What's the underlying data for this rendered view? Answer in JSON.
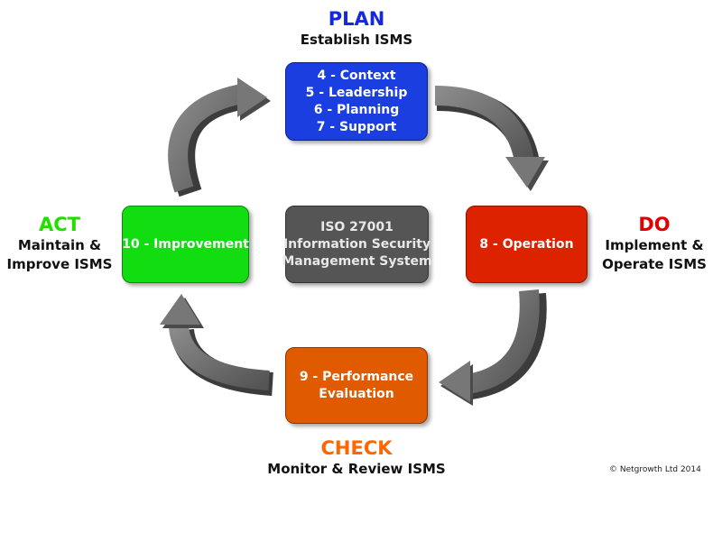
{
  "phases": {
    "plan": {
      "title": "PLAN",
      "subtitle_lines": [
        "Establish ISMS"
      ],
      "color": "#1428e0"
    },
    "do": {
      "title": "DO",
      "subtitle_lines": [
        "Implement &",
        "Operate ISMS"
      ],
      "color": "#e00000"
    },
    "check": {
      "title": "CHECK",
      "subtitle_lines": [
        "Monitor & Review ISMS"
      ],
      "color": "#ff6600"
    },
    "act": {
      "title": "ACT",
      "subtitle_lines": [
        "Maintain &",
        "Improve ISMS"
      ],
      "color": "#22dd00"
    }
  },
  "boxes": {
    "plan": {
      "lines": [
        "4 - Context",
        "5 - Leadership",
        "6 - Planning",
        "7 - Support"
      ],
      "color": "#1a3ee0"
    },
    "do": {
      "lines": [
        "8 - Operation"
      ],
      "color": "#dd2200"
    },
    "check": {
      "lines": [
        "9 - Performance",
        "Evaluation"
      ],
      "color": "#e05a00"
    },
    "act": {
      "lines": [
        "10 - Improvement"
      ],
      "color": "#11dd11"
    },
    "center": {
      "lines": [
        "ISO 27001",
        "Information Security",
        "Management System"
      ],
      "color": "#555555"
    }
  },
  "copyright": "© Netgrowth Ltd 2014",
  "arrow_color": "#6e6e6e"
}
